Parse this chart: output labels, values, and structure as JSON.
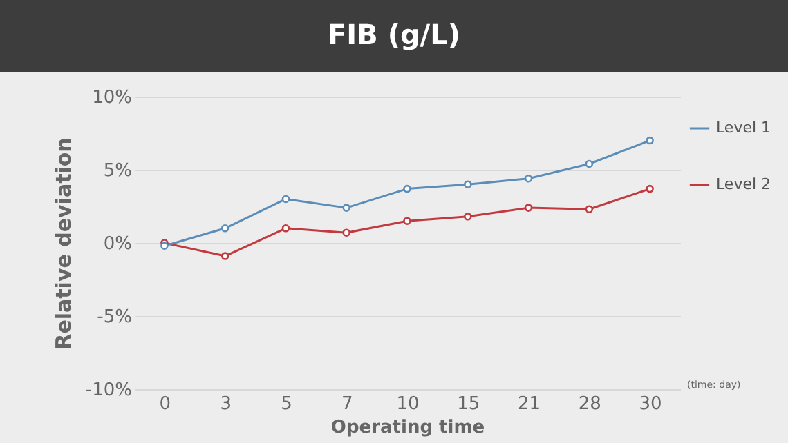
{
  "chart_data": {
    "type": "line",
    "title": "FIB (g/L)",
    "xlabel": "Operating time",
    "ylabel": "Relative deviation",
    "annotations": [
      "(time: day)"
    ],
    "categories": [
      "0",
      "3",
      "5",
      "7",
      "10",
      "15",
      "21",
      "28",
      "30"
    ],
    "ylim": [
      -10,
      10
    ],
    "yticks": [
      {
        "value": -10,
        "label": "-10%"
      },
      {
        "value": -5,
        "label": "-5%"
      },
      {
        "value": 0,
        "label": "0%"
      },
      {
        "value": 5,
        "label": "5%"
      },
      {
        "value": 10,
        "label": "10%"
      }
    ],
    "series": [
      {
        "name": "Level 1",
        "color": "#5b8db8",
        "values": [
          -0.2,
          1.0,
          3.0,
          2.4,
          3.7,
          4.0,
          4.4,
          5.4,
          7.0
        ]
      },
      {
        "name": "Level 2",
        "color": "#c23a3f",
        "values": [
          0.0,
          -0.9,
          1.0,
          0.7,
          1.5,
          1.8,
          2.4,
          2.3,
          3.7
        ]
      }
    ],
    "grid": "y",
    "legend": "right",
    "marker": "circle",
    "line_style": "solid"
  }
}
